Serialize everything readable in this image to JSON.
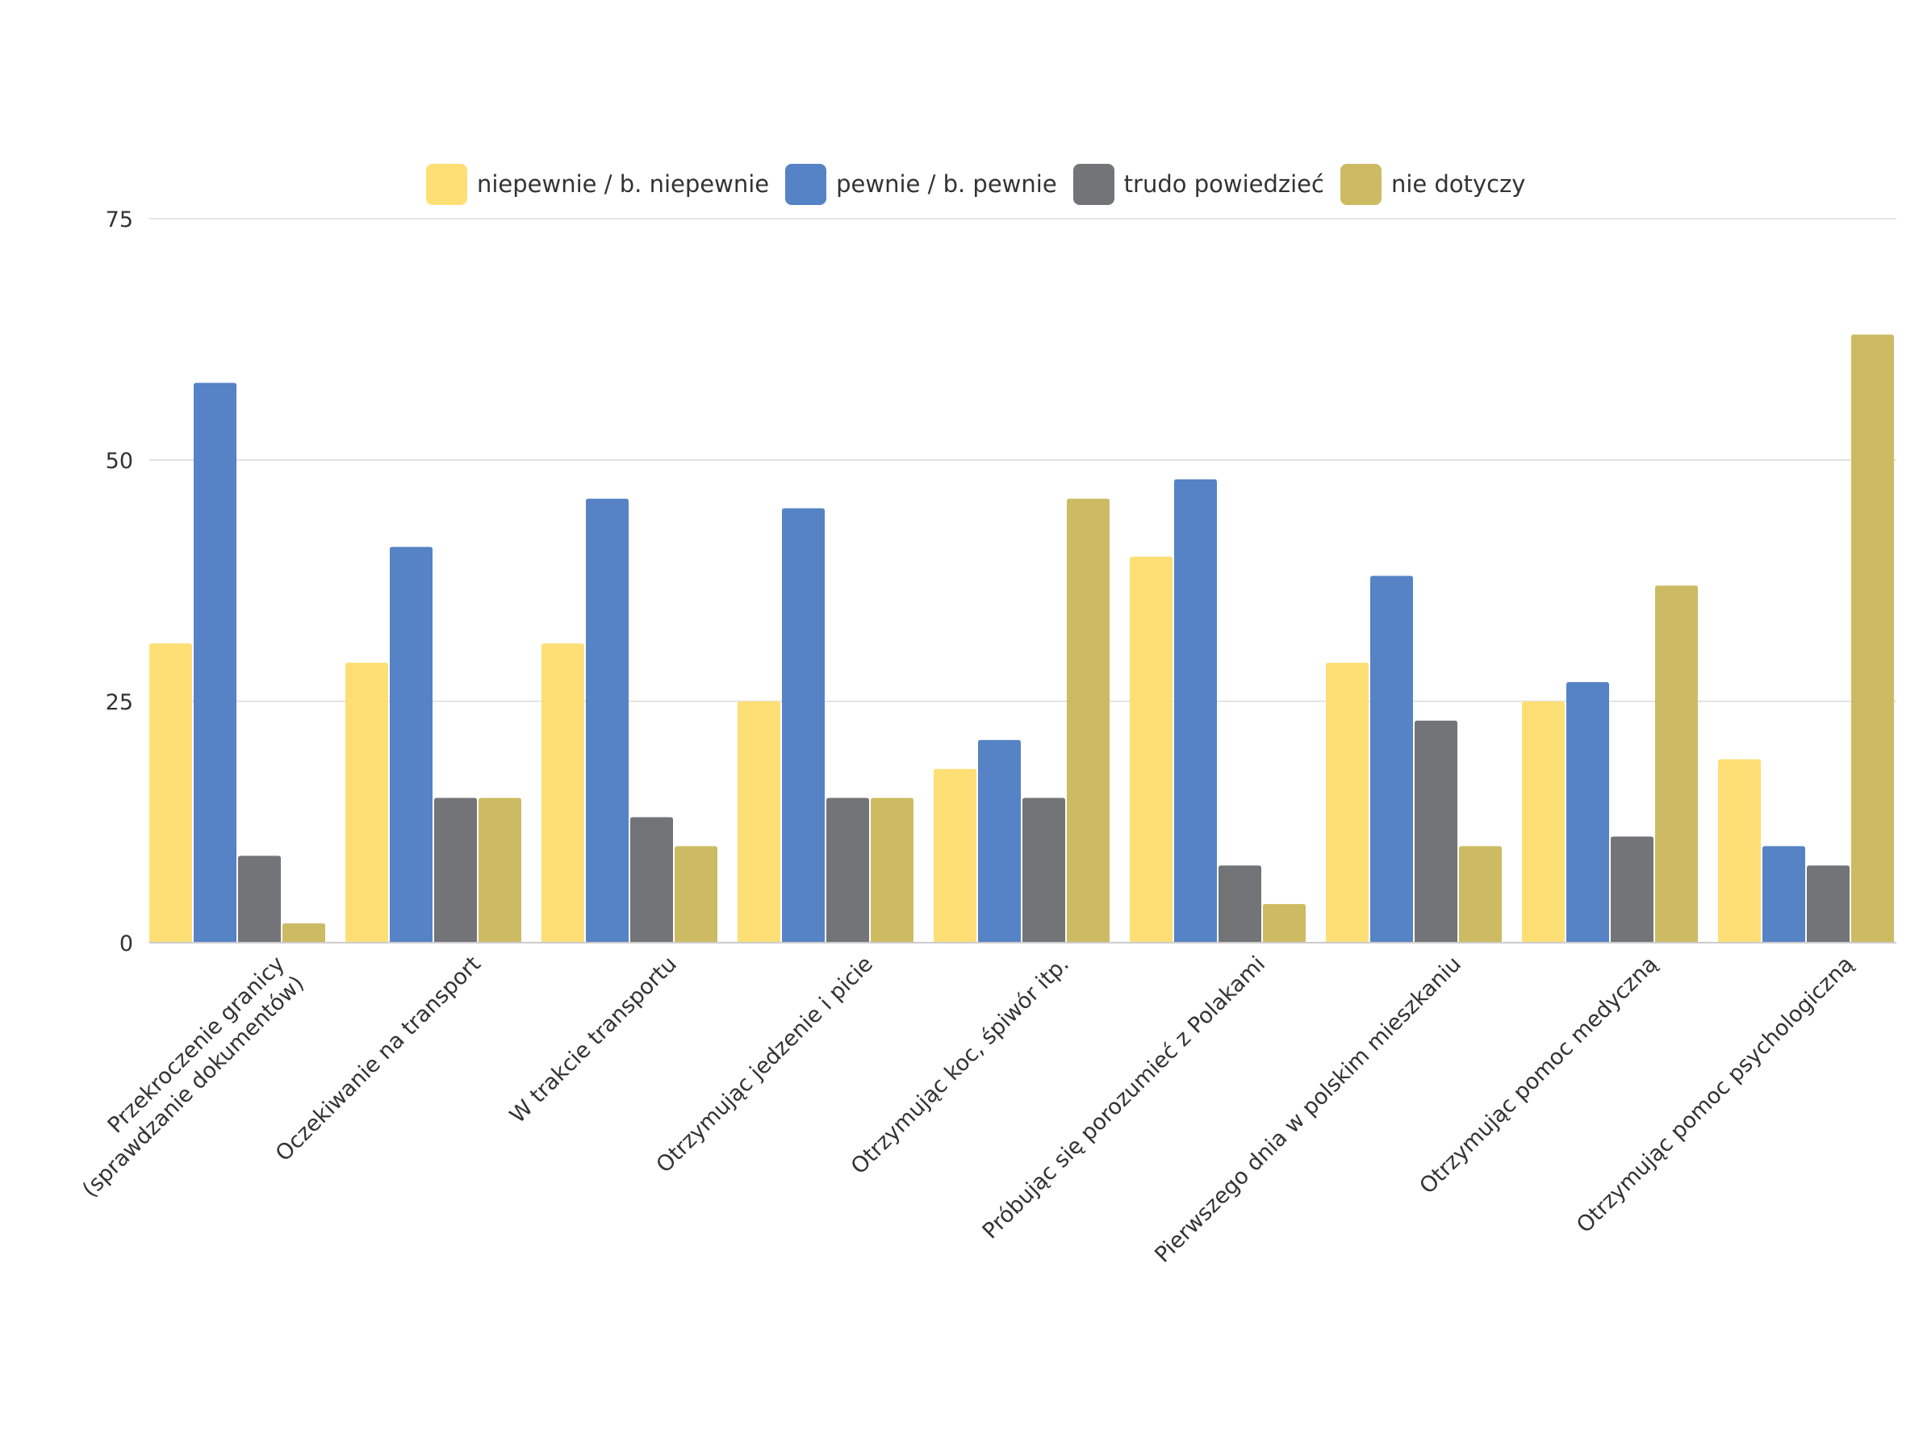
{
  "chart_data": {
    "type": "bar",
    "title": "",
    "xlabel": "",
    "ylabel": "",
    "ylim": [
      0,
      75
    ],
    "yticks": [
      0,
      25,
      50,
      75
    ],
    "grid": true,
    "legend_position": "top-center",
    "categories": [
      [
        "Przekroczenie granicy",
        "(sprawdzanie dokumentów)"
      ],
      [
        "Oczekiwanie na transport"
      ],
      [
        "W trakcie transportu"
      ],
      [
        "Otrzymując jedzenie i picie"
      ],
      [
        "Otrzymując koc, śpiwór itp."
      ],
      [
        "Próbując się porozumieć z Polakami"
      ],
      [
        "Pierwszego dnia w polskim mieszkaniu"
      ],
      [
        "Otrzymując pomoc medyczną"
      ],
      [
        "Otrzymując pomoc psychologiczną"
      ]
    ],
    "series": [
      {
        "name": "niepewnie / b. niepewnie",
        "color": "#fddf75",
        "values": [
          31,
          29,
          31,
          25,
          18,
          40,
          29,
          25,
          19
        ]
      },
      {
        "name": "pewnie / b. pewnie",
        "color": "#5583c5",
        "values": [
          58,
          41,
          46,
          45,
          21,
          48,
          38,
          27,
          10
        ]
      },
      {
        "name": "trudo powiedzieć",
        "color": "#727478",
        "values": [
          9,
          15,
          13,
          15,
          15,
          8,
          23,
          11,
          8
        ]
      },
      {
        "name": "nie dotyczy",
        "color": "#cdbb63",
        "values": [
          2,
          15,
          10,
          15,
          46,
          4,
          10,
          37,
          63
        ]
      }
    ]
  }
}
